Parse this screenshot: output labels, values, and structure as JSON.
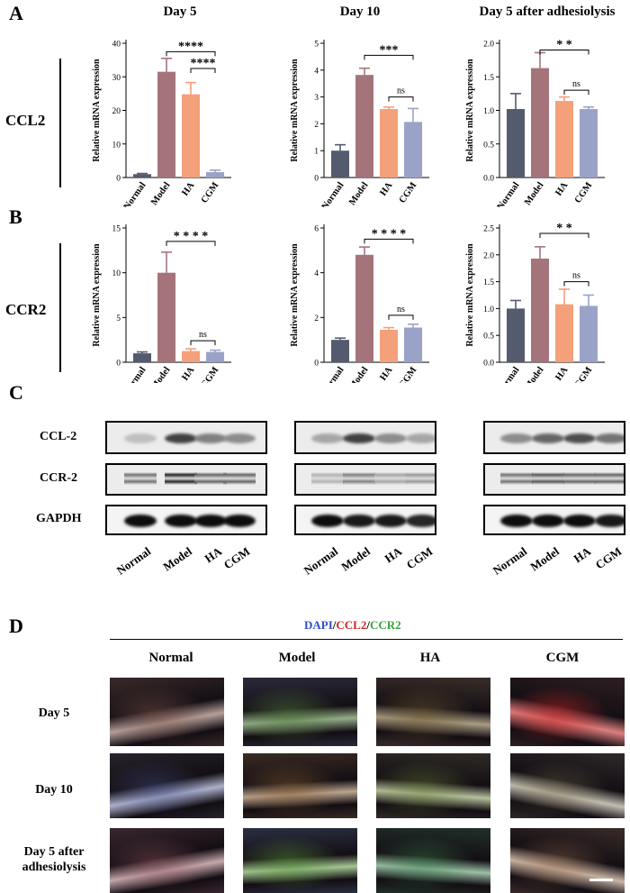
{
  "panels": {
    "A": "A",
    "B": "B",
    "C": "C",
    "D": "D"
  },
  "genes": {
    "ccl2": "CCL2",
    "ccr2": "CCR2"
  },
  "ylabel": "Relative mRNA expression",
  "chart_data": [
    {
      "type": "bar",
      "id": "A-day5",
      "title": "Day 5",
      "gene": "CCL2",
      "categories": [
        "Normal",
        "Model",
        "HA",
        "CGM"
      ],
      "values": [
        1.0,
        31.5,
        24.8,
        1.6
      ],
      "errors": [
        0.2,
        4.0,
        3.5,
        0.6
      ],
      "ylim": [
        0,
        40
      ],
      "yticks": [
        0,
        10,
        20,
        30,
        40
      ],
      "brackets": [
        {
          "from": 1,
          "to": 3,
          "label": "****",
          "height": 37.5
        },
        {
          "from": 2,
          "to": 3,
          "label": "****",
          "height": 32.5
        }
      ]
    },
    {
      "type": "bar",
      "id": "A-day10",
      "title": "Day 10",
      "gene": "CCL2",
      "categories": [
        "Normal",
        "Model",
        "HA",
        "CGM"
      ],
      "values": [
        1.0,
        3.82,
        2.55,
        2.07
      ],
      "errors": [
        0.22,
        0.25,
        0.07,
        0.5
      ],
      "ylim": [
        0,
        5
      ],
      "yticks": [
        0,
        1,
        2,
        3,
        4,
        5
      ],
      "brackets": [
        {
          "from": 1,
          "to": 3,
          "label": "***",
          "height": 4.55
        },
        {
          "from": 2,
          "to": 3,
          "label": "ns",
          "height": 3.0
        }
      ]
    },
    {
      "type": "bar",
      "id": "A-day5-adh",
      "title": "Day 5 after adhesiolysis",
      "gene": "CCL2",
      "categories": [
        "Normal",
        "Model",
        "HA",
        "CGM"
      ],
      "values": [
        1.02,
        1.63,
        1.14,
        1.02
      ],
      "errors": [
        0.23,
        0.23,
        0.06,
        0.03
      ],
      "ylim": [
        0,
        2.0
      ],
      "yticks": [
        0,
        0.5,
        1.0,
        1.5,
        2.0
      ],
      "brackets": [
        {
          "from": 1,
          "to": 3,
          "label": "* *",
          "height": 1.9
        },
        {
          "from": 2,
          "to": 3,
          "label": "ns",
          "height": 1.3
        }
      ]
    },
    {
      "type": "bar",
      "id": "B-day5",
      "gene": "CCR2",
      "categories": [
        "Normal",
        "Model",
        "HA",
        "CGM"
      ],
      "values": [
        1.0,
        10.0,
        1.25,
        1.15
      ],
      "errors": [
        0.15,
        2.3,
        0.25,
        0.2
      ],
      "ylim": [
        0,
        15
      ],
      "yticks": [
        0,
        5,
        10,
        15
      ],
      "brackets": [
        {
          "from": 1,
          "to": 3,
          "label": "* * * *",
          "height": 13.5
        },
        {
          "from": 2,
          "to": 3,
          "label": "ns",
          "height": 2.4
        }
      ]
    },
    {
      "type": "bar",
      "id": "B-day10",
      "gene": "CCR2",
      "categories": [
        "Normal",
        "Model",
        "HA",
        "CGM"
      ],
      "values": [
        1.0,
        4.8,
        1.45,
        1.55
      ],
      "errors": [
        0.08,
        0.35,
        0.1,
        0.15
      ],
      "ylim": [
        0,
        6
      ],
      "yticks": [
        0,
        2,
        4,
        6
      ],
      "brackets": [
        {
          "from": 1,
          "to": 3,
          "label": "* * * *",
          "height": 5.5
        },
        {
          "from": 2,
          "to": 3,
          "label": "ns",
          "height": 2.1
        }
      ]
    },
    {
      "type": "bar",
      "id": "B-day5-adh",
      "gene": "CCR2",
      "categories": [
        "Normal",
        "Model",
        "HA",
        "CGM"
      ],
      "values": [
        1.0,
        1.93,
        1.08,
        1.05
      ],
      "errors": [
        0.15,
        0.22,
        0.28,
        0.2
      ],
      "ylim": [
        0,
        2.5
      ],
      "yticks": [
        0,
        0.5,
        1.0,
        1.5,
        2.0,
        2.5
      ],
      "brackets": [
        {
          "from": 1,
          "to": 3,
          "label": "* *",
          "height": 2.4
        },
        {
          "from": 2,
          "to": 3,
          "label": "ns",
          "height": 1.5
        }
      ]
    }
  ],
  "tick_labels": {
    "0": "0",
    "10": "10",
    "20": "20",
    "30": "30",
    "40": "40"
  },
  "colors": {
    "Normal": "#555b6e",
    "Model": "#a5747b",
    "HA": "#f4a07a",
    "CGM": "#9aa3c7",
    "error": "#555555"
  },
  "blots": {
    "rows": [
      "CCL-2",
      "CCR-2",
      "GAPDH"
    ],
    "lanes": [
      "Normal",
      "Model",
      "HA",
      "CGM"
    ]
  },
  "panel_d": {
    "legend": {
      "dapi": "DAPI",
      "sep1": "/",
      "ccl2": "CCL2",
      "sep2": "/",
      "ccr2": "CCR2"
    },
    "legend_colors": {
      "dapi": "#2e4fc9",
      "ccl2": "#d42424",
      "ccr2": "#3aa13a"
    },
    "columns": [
      "Normal",
      "Model",
      "HA",
      "CGM"
    ],
    "rows": [
      "Day 5",
      "Day 10",
      "Day 5 after adhesiolysis"
    ]
  }
}
